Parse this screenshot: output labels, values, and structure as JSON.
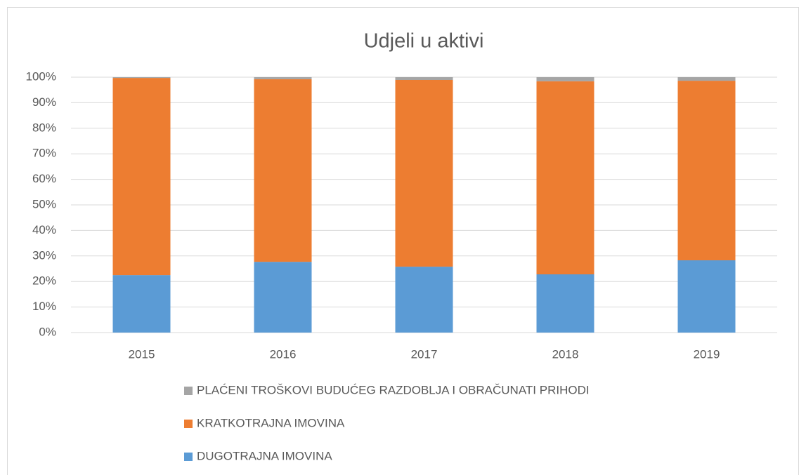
{
  "chart_data": {
    "type": "stacked_bar",
    "title": "Udjeli u aktivi",
    "categories": [
      "2015",
      "2016",
      "2017",
      "2018",
      "2019"
    ],
    "series": [
      {
        "name": "DUGOTRAJNA IMOVINA",
        "color": "#5b9bd5",
        "values": [
          22.5,
          27.7,
          25.8,
          22.8,
          28.3
        ]
      },
      {
        "name": "KRATKOTRAJNA IMOVINA",
        "color": "#ed7d31",
        "values": [
          77.2,
          71.5,
          73.1,
          75.6,
          70.3
        ]
      },
      {
        "name": "PLAĆENI TROŠKOVI BUDUĆEG RAZDOBLJA I OBRAČUNATI PRIHODI",
        "color": "#a5a5a5",
        "values": [
          0.3,
          0.8,
          1.1,
          1.6,
          1.4
        ]
      }
    ],
    "ylim": [
      0,
      100
    ],
    "yticks": [
      {
        "value": 0,
        "label": "0%"
      },
      {
        "value": 10,
        "label": "10%"
      },
      {
        "value": 20,
        "label": "20%"
      },
      {
        "value": 30,
        "label": "30%"
      },
      {
        "value": 40,
        "label": "40%"
      },
      {
        "value": 50,
        "label": "50%"
      },
      {
        "value": 60,
        "label": "60%"
      },
      {
        "value": 70,
        "label": "70%"
      },
      {
        "value": 80,
        "label": "80%"
      },
      {
        "value": 90,
        "label": "90%"
      },
      {
        "value": 100,
        "label": "100%"
      }
    ],
    "grid": true,
    "legend": "bottom"
  }
}
